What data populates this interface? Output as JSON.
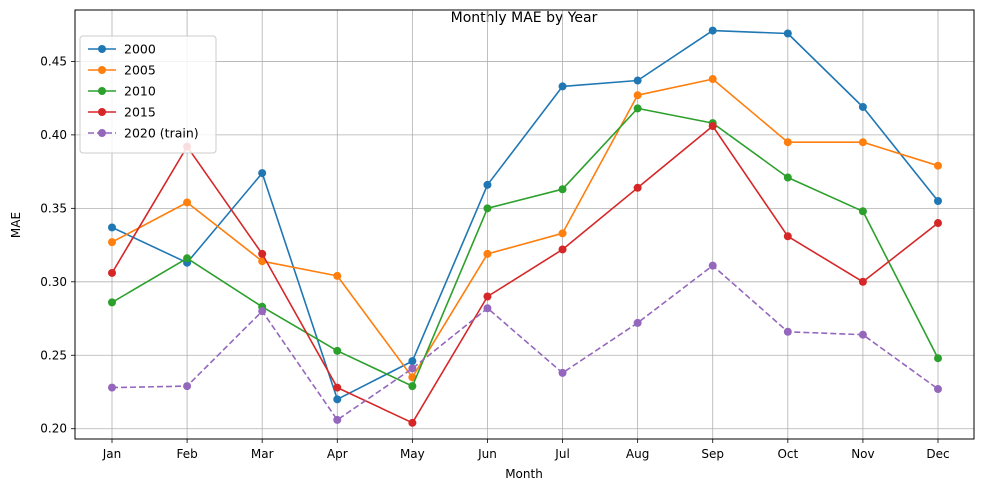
{
  "chart_data": {
    "type": "line",
    "title": "Monthly MAE by Year",
    "xlabel": "Month",
    "ylabel": "MAE",
    "categories": [
      "Jan",
      "Feb",
      "Mar",
      "Apr",
      "May",
      "Jun",
      "Jul",
      "Aug",
      "Sep",
      "Oct",
      "Nov",
      "Dec"
    ],
    "ylim": [
      0.193,
      0.485
    ],
    "yticks": [
      0.2,
      0.25,
      0.3,
      0.35,
      0.4,
      0.45
    ],
    "ytick_labels": [
      "0.20",
      "0.25",
      "0.30",
      "0.35",
      "0.40",
      "0.45"
    ],
    "grid": true,
    "legend": "top-left",
    "series": [
      {
        "name": "2000",
        "color": "#1f77b4",
        "dashed": false,
        "values": [
          0.337,
          0.313,
          0.374,
          0.22,
          0.246,
          0.366,
          0.433,
          0.437,
          0.471,
          0.469,
          0.419,
          0.355
        ]
      },
      {
        "name": "2005",
        "color": "#ff7f0e",
        "dashed": false,
        "values": [
          0.327,
          0.354,
          0.314,
          0.304,
          0.235,
          0.319,
          0.333,
          0.427,
          0.438,
          0.395,
          0.395,
          0.379
        ]
      },
      {
        "name": "2010",
        "color": "#2ca02c",
        "dashed": false,
        "values": [
          0.286,
          0.316,
          0.283,
          0.253,
          0.229,
          0.35,
          0.363,
          0.418,
          0.408,
          0.371,
          0.348,
          0.248
        ]
      },
      {
        "name": "2015",
        "color": "#d62728",
        "dashed": false,
        "values": [
          0.306,
          0.392,
          0.319,
          0.228,
          0.204,
          0.29,
          0.322,
          0.364,
          0.406,
          0.331,
          0.3,
          0.34
        ]
      },
      {
        "name": "2020 (train)",
        "color": "#9467bd",
        "dashed": true,
        "values": [
          0.228,
          0.229,
          0.28,
          0.206,
          0.241,
          0.282,
          0.238,
          0.272,
          0.311,
          0.266,
          0.264,
          0.227
        ]
      }
    ]
  }
}
